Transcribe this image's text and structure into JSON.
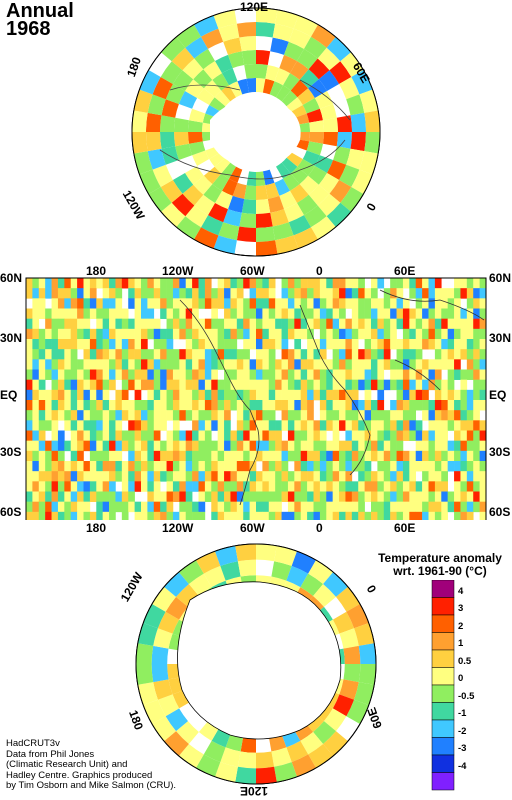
{
  "title": {
    "line1": "Annual",
    "line2": "1968"
  },
  "north_polar": {
    "labels": [
      {
        "text": "120E",
        "name": "np-label-120e"
      },
      {
        "text": "60E",
        "name": "np-label-60e"
      },
      {
        "text": "0",
        "name": "np-label-0"
      },
      {
        "text": "120W",
        "name": "np-label-120w"
      },
      {
        "text": "180",
        "name": "np-label-180"
      }
    ]
  },
  "world_map": {
    "lon_labels": [
      "180",
      "120W",
      "60W",
      "0",
      "60E"
    ],
    "lat_labels": [
      "60N",
      "30N",
      "EQ",
      "30S",
      "60S"
    ]
  },
  "south_polar": {
    "labels": [
      {
        "text": "120W",
        "name": "sp-label-120w"
      },
      {
        "text": "0",
        "name": "sp-label-0"
      },
      {
        "text": "180",
        "name": "sp-label-180"
      },
      {
        "text": "60E",
        "name": "sp-label-60e"
      },
      {
        "text": "120E",
        "name": "sp-label-120e"
      }
    ]
  },
  "legend": {
    "title_line1": "Temperature anomaly",
    "title_line2": "wrt. 1961-90  (°C)",
    "bins": [
      {
        "color": "#a0007a"
      },
      {
        "color": "#ff2000"
      },
      {
        "color": "#ff6000"
      },
      {
        "color": "#ffa030"
      },
      {
        "color": "#ffd040"
      },
      {
        "color": "#ffff80"
      },
      {
        "color": "#90ee60"
      },
      {
        "color": "#40d8a0"
      },
      {
        "color": "#40c8ff"
      },
      {
        "color": "#2080ff"
      },
      {
        "color": "#1030e0"
      },
      {
        "color": "#8020ff"
      }
    ],
    "tick_labels": [
      "4",
      "3",
      "2",
      "1",
      "0.5",
      "0",
      "-0.5",
      "-1",
      "-2",
      "-3",
      "-4"
    ]
  },
  "credits": [
    "HadCRUT3v",
    "Data from Phil Jones",
    "(Climatic Research Unit) and",
    "Hadley Centre.  Graphics produced",
    "by Tim Osborn and Mike Salmon (CRU)."
  ]
}
